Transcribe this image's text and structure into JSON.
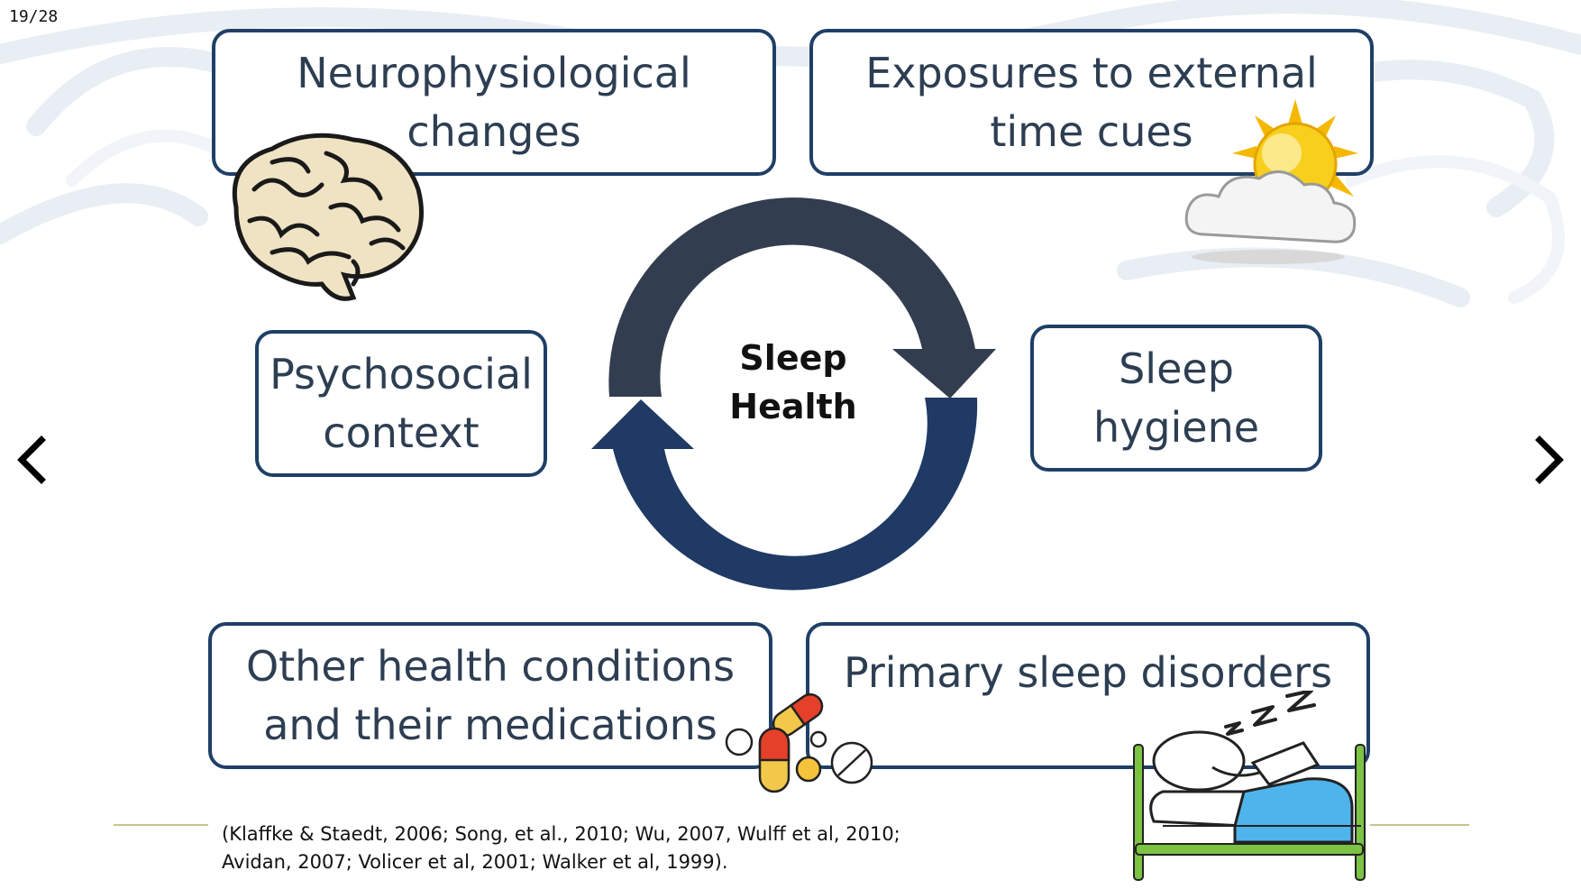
{
  "slide_counter": "19/28",
  "diagram": {
    "center": "Sleep\nHealth",
    "factors": {
      "neurophysiological": "Neurophysiological\nchanges",
      "external_cues": "Exposures to external\ntime cues",
      "psychosocial": "Psychosocial\ncontext",
      "sleep_hygiene": "Sleep\nhygiene",
      "other_health": "Other health conditions\nand their medications",
      "primary_disorders": "Primary sleep disorders"
    }
  },
  "citation": "(Klaffke & Staedt, 2006; Song, et al., 2010; Wu, 2007, Wulff et al, 2010;\nAvidan, 2007; Volicer et al, 2001; Walker et al, 1999).",
  "icons": {
    "brain": "brain-icon",
    "sun_cloud": "sun-cloud-icon",
    "pills": "pills-icon",
    "sleeping_person": "sleeping-person-icon",
    "prev": "chevron-left-icon",
    "next": "chevron-right-icon"
  },
  "colors": {
    "box_border": "#1f3f66",
    "box_text": "#2d3e52",
    "arrow_dark": "#323d4f",
    "arrow_navy": "#1f3a64"
  }
}
